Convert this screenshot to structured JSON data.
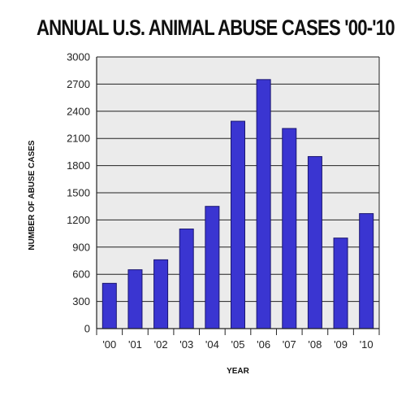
{
  "chart_data": {
    "type": "bar",
    "title": "ANNUAL U.S. ANIMAL ABUSE CASES '00-'10",
    "xlabel": "YEAR",
    "ylabel": "NUMBER OF ABUSE CASES",
    "categories": [
      "'00",
      "'01",
      "'02",
      "'03",
      "'04",
      "'05",
      "'06",
      "'07",
      "'08",
      "'09",
      "'10"
    ],
    "values": [
      500,
      650,
      760,
      1100,
      1350,
      2290,
      2750,
      2210,
      1900,
      1000,
      1270
    ],
    "ylim": [
      0,
      3000
    ],
    "yticks": [
      0,
      300,
      600,
      900,
      1200,
      1500,
      1800,
      2100,
      2400,
      2700,
      3000
    ],
    "grid": "horizontal",
    "legend": "none"
  },
  "colors": {
    "bar_fill": "#3a35d1",
    "bar_stroke": "#1a1670",
    "plot_background": "#ebebeb",
    "grid": "#222222"
  }
}
